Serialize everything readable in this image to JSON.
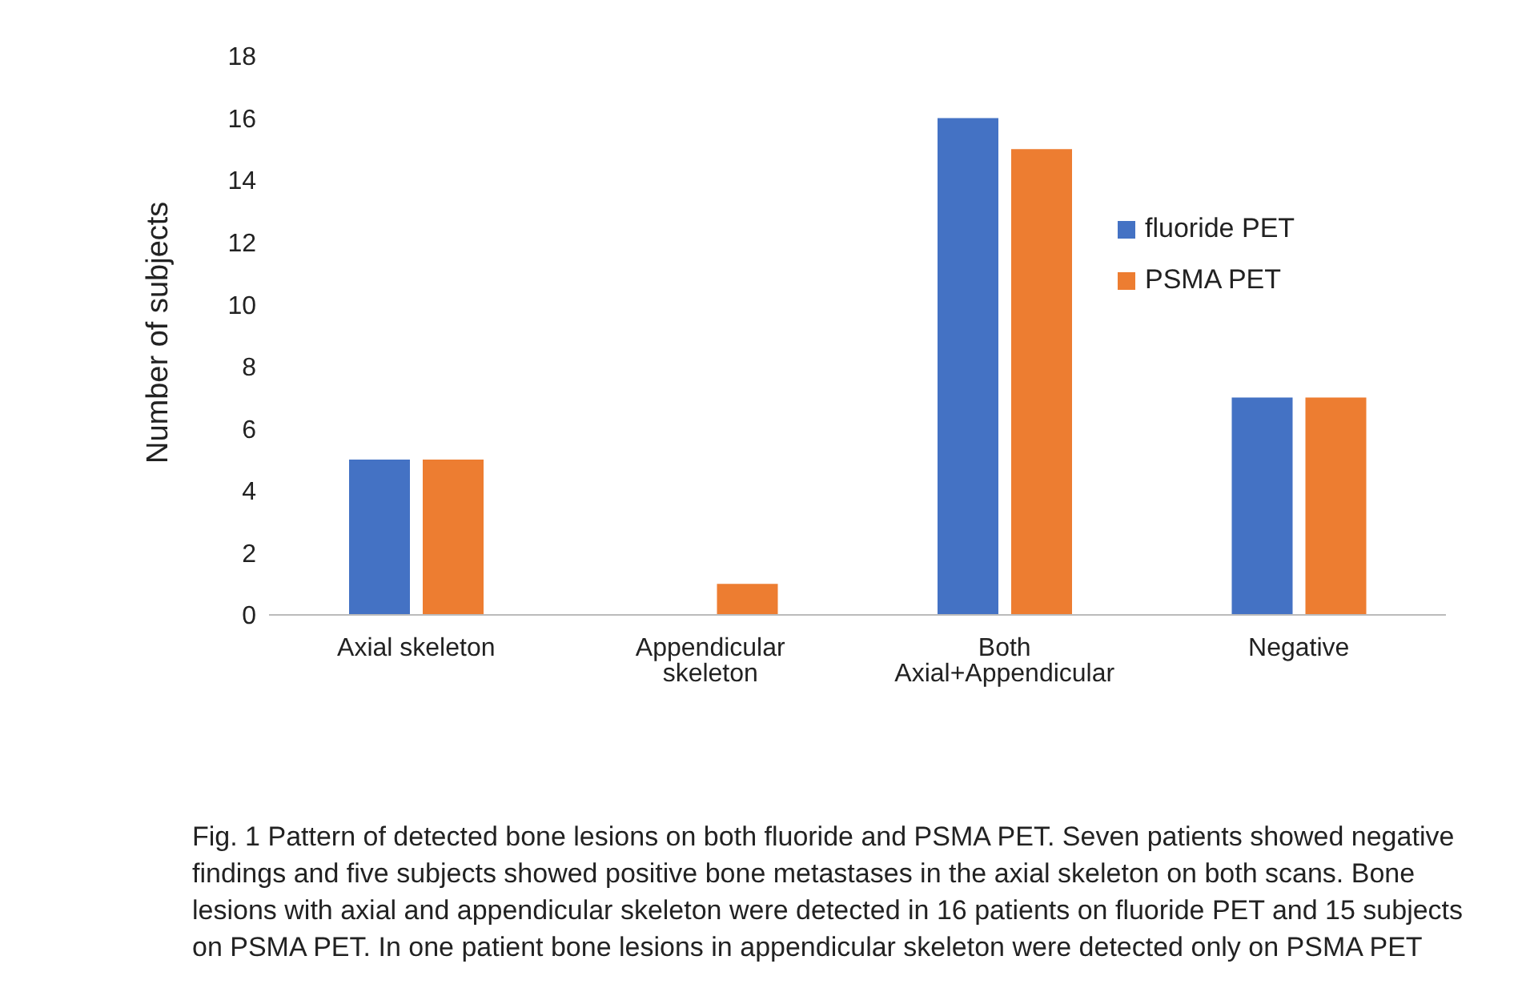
{
  "chart_data": {
    "type": "bar",
    "ylabel": "Number of subjects",
    "categories": [
      "Axial skeleton",
      "Appendicular skeleton",
      "Both Axial+Appendicular",
      "Negative"
    ],
    "series": [
      {
        "name": "fluoride PET",
        "color": "#4472c4",
        "values": [
          5,
          0,
          16,
          7
        ]
      },
      {
        "name": "PSMA PET",
        "color": "#ed7d31",
        "values": [
          5,
          1,
          15,
          7
        ]
      }
    ],
    "ylim": [
      0,
      18
    ],
    "yticks": [
      0,
      2,
      4,
      6,
      8,
      10,
      12,
      14,
      16,
      18
    ],
    "grid": false,
    "legend": "right",
    "annotations": [
      "Fig. 1  Pattern of detected bone lesions on both fluoride and PSMA PET. Seven patients showed negative findings and five subjects showed positive bone metastases in the axial skeleton on both scans. Bone lesions with axial and appendicular skeleton were detected in 16 patients on fluoride PET and 15 subjects on PSMA PET. In one patient bone lesions in appendicular skeleton were detected only on PSMA PET"
    ]
  }
}
